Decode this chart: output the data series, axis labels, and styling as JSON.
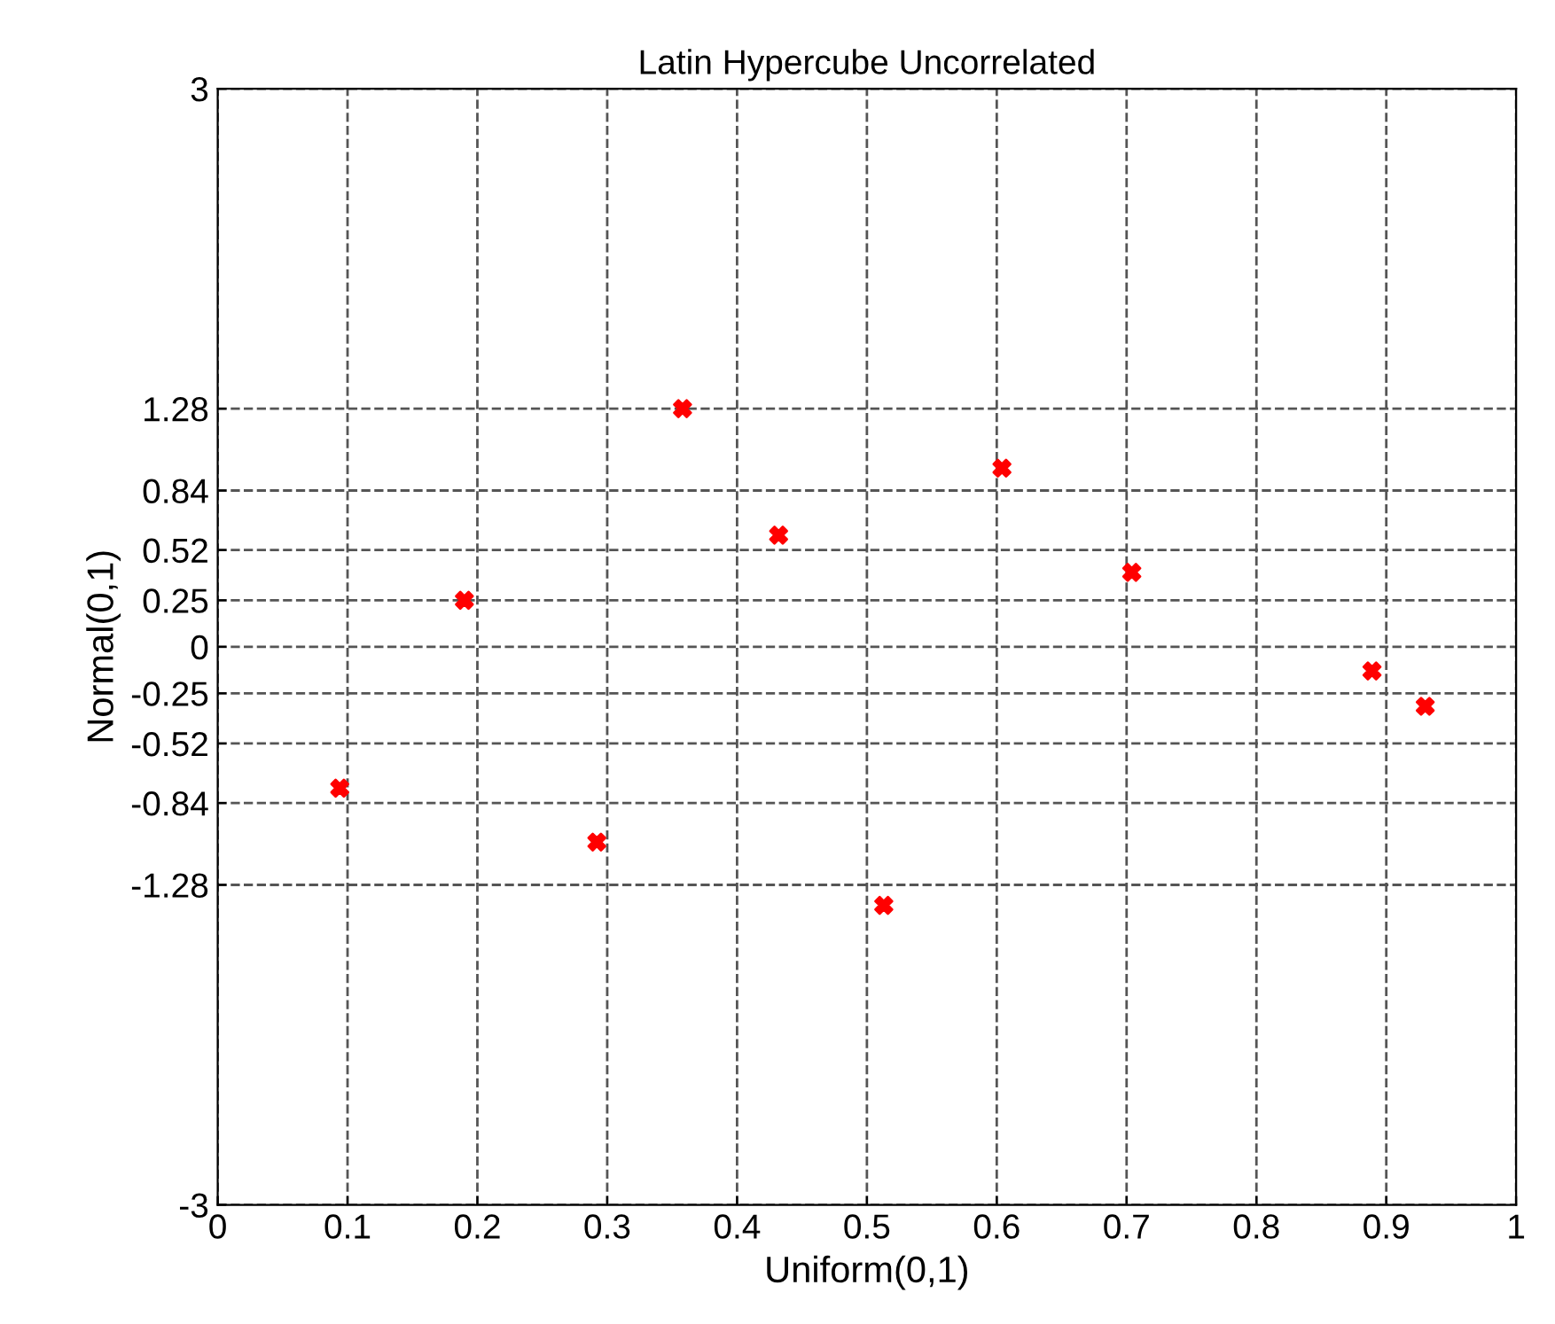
{
  "chart_data": {
    "type": "scatter",
    "title": "Latin Hypercube Uncorrelated",
    "xlabel": "Uniform(0,1)",
    "ylabel": "Normal(0,1)",
    "x": [
      0.094,
      0.19,
      0.292,
      0.358,
      0.432,
      0.513,
      0.604,
      0.704,
      0.889,
      0.93
    ],
    "series": [
      {
        "color": "#ff0000",
        "values": [
          -0.76,
          0.25,
          -1.05,
          1.28,
          0.6,
          -1.39,
          0.96,
          0.4,
          -0.13,
          -0.32
        ]
      }
    ],
    "xlim": [
      0,
      1
    ],
    "xticks": [
      0,
      0.1,
      0.2,
      0.3,
      0.4,
      0.5,
      0.6,
      0.7,
      0.8,
      0.9,
      1
    ],
    "ylim": [
      -3,
      3
    ],
    "yticks": [
      -3,
      -1.28,
      -0.84,
      -0.52,
      -0.25,
      0,
      0.25,
      0.52,
      0.84,
      1.28,
      3
    ],
    "grid": true,
    "marker": "cross"
  }
}
